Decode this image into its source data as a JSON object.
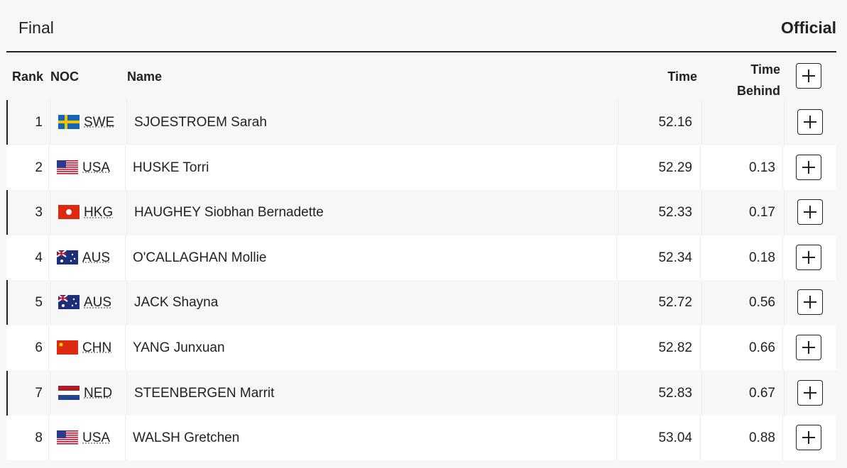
{
  "header": {
    "title": "Final",
    "status": "Official"
  },
  "table": {
    "columns": [
      "Rank",
      "NOC",
      "Name",
      "Time",
      "Time Behind"
    ],
    "rows": [
      [
        1,
        "SWE",
        "SJOESTROEM Sarah",
        52.16,
        null
      ],
      [
        2,
        "USA",
        "HUSKE Torri",
        52.29,
        0.13
      ],
      [
        3,
        "HKG",
        "HAUGHEY Siobhan Bernadette",
        52.33,
        0.17
      ],
      [
        4,
        "AUS",
        "O'CALLAGHAN Mollie",
        52.34,
        0.18
      ],
      [
        5,
        "AUS",
        "JACK Shayna",
        52.72,
        0.56
      ],
      [
        6,
        "CHN",
        "YANG Junxuan",
        52.82,
        0.66
      ],
      [
        7,
        "NED",
        "STEENBERGEN Marrit",
        52.83,
        0.67
      ],
      [
        8,
        "USA",
        "WALSH Gretchen",
        53.04,
        0.88
      ]
    ]
  }
}
